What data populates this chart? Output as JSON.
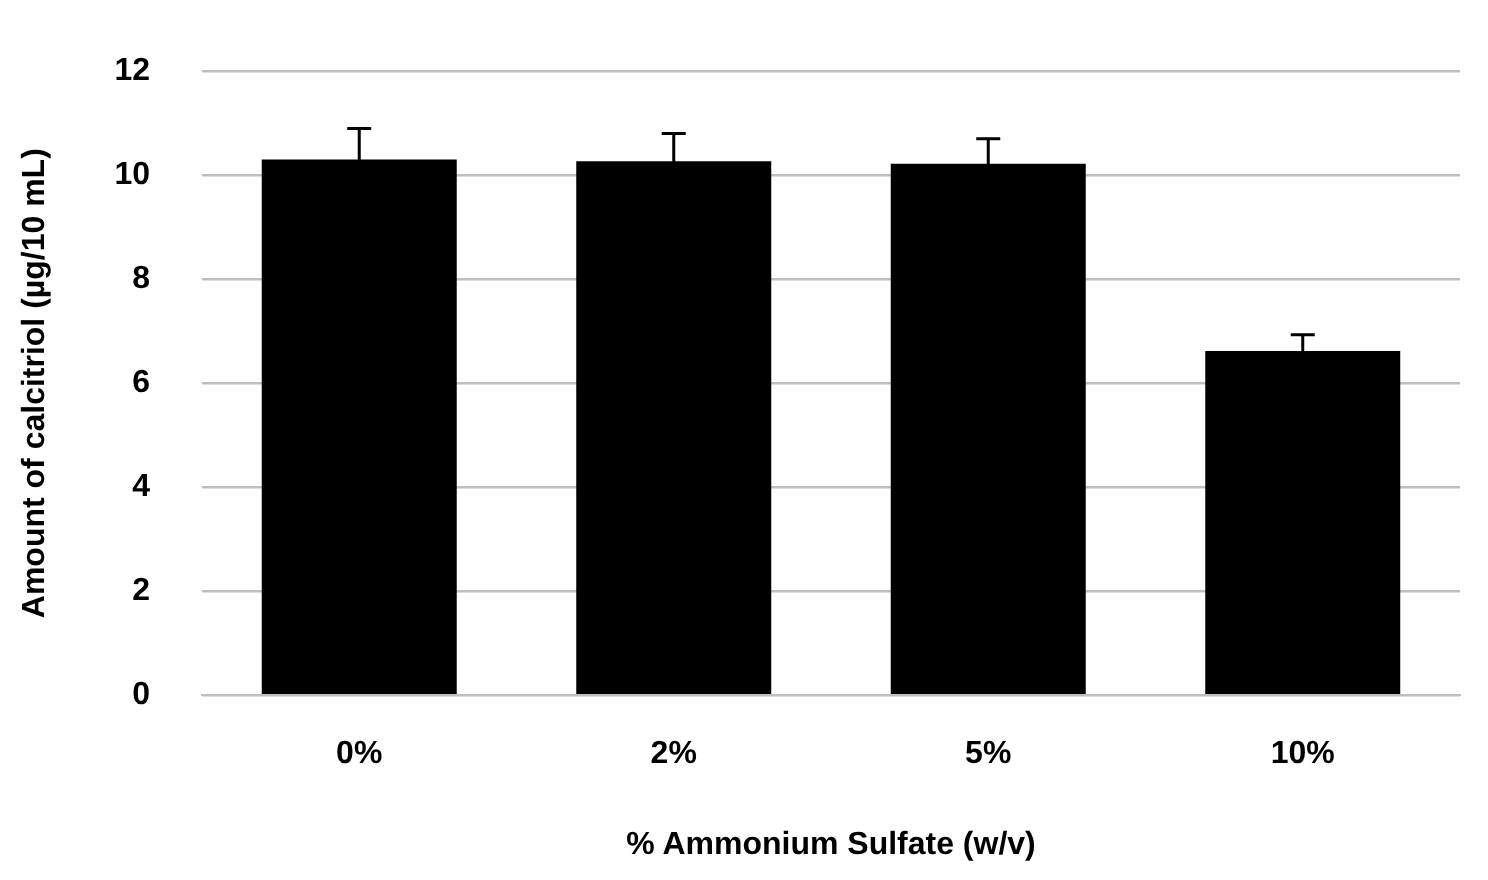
{
  "chart_data": {
    "type": "bar",
    "xlabel": "% Ammonium Sulfate (w/v)",
    "ylabel": "Amount of calcitriol (µg/10 mL)",
    "categories": [
      "0%",
      "2%",
      "5%",
      "10%"
    ],
    "values": [
      10.3,
      10.27,
      10.22,
      6.62
    ],
    "errors": [
      0.6,
      0.53,
      0.48,
      0.31
    ],
    "color": "#000000",
    "ylim": [
      0,
      12
    ],
    "yticks": [
      0,
      2,
      4,
      6,
      8,
      10,
      12
    ],
    "grid": "y"
  }
}
